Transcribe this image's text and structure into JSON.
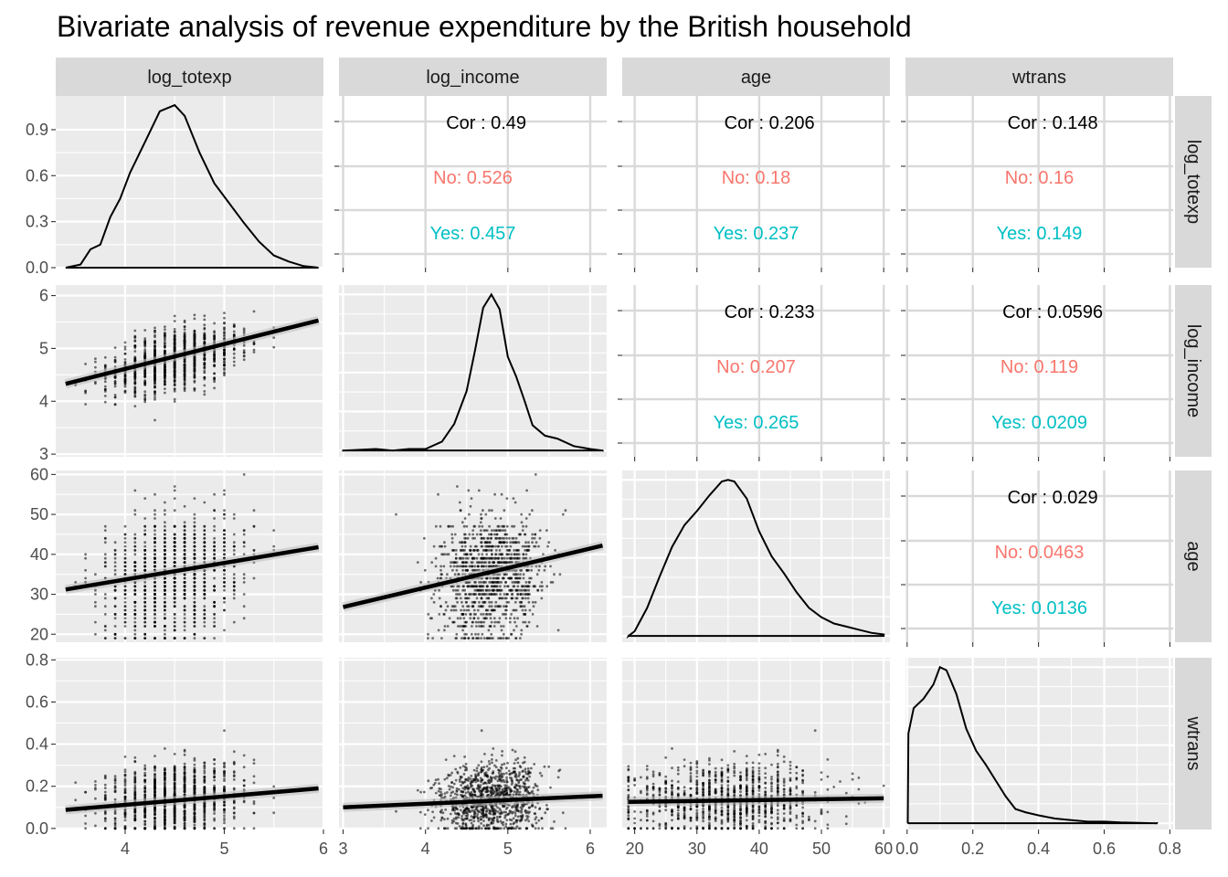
{
  "chart_data": {
    "type": "scatter",
    "layout": "pairs-matrix",
    "title": "Bivariate analysis of revenue expenditure by the British household",
    "variables": [
      "log_totexp",
      "log_income",
      "age",
      "wtrans"
    ],
    "axes": {
      "log_totexp": {
        "range": [
          3.3,
          6.0
        ],
        "ticks": [
          4,
          5,
          6
        ],
        "density_ticks": [
          0.0,
          0.3,
          0.6,
          0.9
        ],
        "density_range": [
          0,
          1.12
        ]
      },
      "log_income": {
        "range": [
          2.95,
          6.2
        ],
        "ticks": [
          3,
          4,
          5,
          6
        ]
      },
      "age": {
        "range": [
          18,
          61
        ],
        "ticks": [
          20,
          30,
          40,
          50,
          60
        ]
      },
      "wtrans": {
        "range": [
          -0.005,
          0.81
        ],
        "ticks": [
          0.0,
          0.2,
          0.4,
          0.6,
          0.8
        ],
        "tick_labels": [
          "0.0",
          "0.2",
          "0.4",
          "0.6",
          "0.8"
        ]
      }
    },
    "tick_labels": {
      "log_totexp": [
        "4",
        "5",
        "6"
      ],
      "log_income": [
        "3",
        "4",
        "5",
        "6"
      ],
      "age": [
        "20",
        "30",
        "40",
        "50",
        "60"
      ],
      "wtrans": [
        "0.0",
        "0.2",
        "0.4",
        "0.6",
        "0.8"
      ],
      "density": [
        "0.0",
        "0.3",
        "0.6",
        "0.9"
      ]
    },
    "correlations": [
      {
        "row": "log_totexp",
        "col": "log_income",
        "total": "Cor : 0.49",
        "groups": [
          {
            "name": "No",
            "label": "No: 0.526",
            "color": "#F8766D"
          },
          {
            "name": "Yes",
            "label": "Yes: 0.457",
            "color": "#00BFC4"
          }
        ]
      },
      {
        "row": "log_totexp",
        "col": "age",
        "total": "Cor : 0.206",
        "groups": [
          {
            "name": "No",
            "label": "No: 0.18",
            "color": "#F8766D"
          },
          {
            "name": "Yes",
            "label": "Yes: 0.237",
            "color": "#00BFC4"
          }
        ]
      },
      {
        "row": "log_totexp",
        "col": "wtrans",
        "total": "Cor : 0.148",
        "groups": [
          {
            "name": "No",
            "label": "No: 0.16",
            "color": "#F8766D"
          },
          {
            "name": "Yes",
            "label": "Yes: 0.149",
            "color": "#00BFC4"
          }
        ]
      },
      {
        "row": "log_income",
        "col": "age",
        "total": "Cor : 0.233",
        "groups": [
          {
            "name": "No",
            "label": "No: 0.207",
            "color": "#F8766D"
          },
          {
            "name": "Yes",
            "label": "Yes: 0.265",
            "color": "#00BFC4"
          }
        ]
      },
      {
        "row": "log_income",
        "col": "wtrans",
        "total": "Cor : 0.0596",
        "groups": [
          {
            "name": "No",
            "label": "No: 0.119",
            "color": "#F8766D"
          },
          {
            "name": "Yes",
            "label": "Yes: 0.0209",
            "color": "#00BFC4"
          }
        ]
      },
      {
        "row": "age",
        "col": "wtrans",
        "total": "Cor : 0.029",
        "groups": [
          {
            "name": "No",
            "label": "No: 0.0463",
            "color": "#F8766D"
          },
          {
            "name": "Yes",
            "label": "Yes: 0.0136",
            "color": "#00BFC4"
          }
        ]
      }
    ],
    "densities": {
      "log_totexp": [
        [
          3.4,
          0.0
        ],
        [
          3.55,
          0.02
        ],
        [
          3.65,
          0.12
        ],
        [
          3.75,
          0.15
        ],
        [
          3.85,
          0.33
        ],
        [
          3.95,
          0.45
        ],
        [
          4.05,
          0.62
        ],
        [
          4.2,
          0.82
        ],
        [
          4.35,
          1.02
        ],
        [
          4.5,
          1.06
        ],
        [
          4.6,
          0.99
        ],
        [
          4.75,
          0.75
        ],
        [
          4.9,
          0.55
        ],
        [
          5.05,
          0.42
        ],
        [
          5.2,
          0.29
        ],
        [
          5.35,
          0.17
        ],
        [
          5.5,
          0.08
        ],
        [
          5.65,
          0.04
        ],
        [
          5.8,
          0.01
        ],
        [
          5.95,
          0.0
        ]
      ],
      "log_income": [
        [
          3.0,
          0.0
        ],
        [
          3.4,
          0.01
        ],
        [
          3.6,
          0.0
        ],
        [
          3.8,
          0.01
        ],
        [
          4.0,
          0.01
        ],
        [
          4.2,
          0.06
        ],
        [
          4.35,
          0.18
        ],
        [
          4.5,
          0.4
        ],
        [
          4.6,
          0.67
        ],
        [
          4.7,
          0.96
        ],
        [
          4.8,
          1.05
        ],
        [
          4.9,
          0.95
        ],
        [
          5.0,
          0.63
        ],
        [
          5.1,
          0.5
        ],
        [
          5.2,
          0.34
        ],
        [
          5.3,
          0.17
        ],
        [
          5.45,
          0.1
        ],
        [
          5.6,
          0.08
        ],
        [
          5.8,
          0.03
        ],
        [
          6.0,
          0.01
        ],
        [
          6.15,
          0.0
        ]
      ],
      "age": [
        [
          19,
          0.0
        ],
        [
          20,
          0.03
        ],
        [
          22,
          0.18
        ],
        [
          24,
          0.38
        ],
        [
          26,
          0.57
        ],
        [
          28,
          0.71
        ],
        [
          30,
          0.8
        ],
        [
          32,
          0.9
        ],
        [
          34,
          0.99
        ],
        [
          35,
          1.0
        ],
        [
          36,
          0.99
        ],
        [
          38,
          0.88
        ],
        [
          40,
          0.67
        ],
        [
          42,
          0.51
        ],
        [
          44,
          0.4
        ],
        [
          46,
          0.28
        ],
        [
          48,
          0.18
        ],
        [
          50,
          0.12
        ],
        [
          52,
          0.08
        ],
        [
          54,
          0.06
        ],
        [
          56,
          0.04
        ],
        [
          58,
          0.02
        ],
        [
          60,
          0.01
        ]
      ],
      "wtrans": [
        [
          0.002,
          0.0
        ],
        [
          0.004,
          0.57
        ],
        [
          0.02,
          0.73
        ],
        [
          0.05,
          0.79
        ],
        [
          0.08,
          0.88
        ],
        [
          0.1,
          0.99
        ],
        [
          0.12,
          0.97
        ],
        [
          0.15,
          0.82
        ],
        [
          0.18,
          0.6
        ],
        [
          0.21,
          0.46
        ],
        [
          0.24,
          0.37
        ],
        [
          0.27,
          0.27
        ],
        [
          0.3,
          0.17
        ],
        [
          0.33,
          0.09
        ],
        [
          0.36,
          0.07
        ],
        [
          0.4,
          0.05
        ],
        [
          0.45,
          0.03
        ],
        [
          0.5,
          0.02
        ],
        [
          0.55,
          0.01
        ],
        [
          0.6,
          0.01
        ],
        [
          0.65,
          0.005
        ],
        [
          0.76,
          0.0
        ]
      ]
    },
    "regression_lines": [
      {
        "row": "log_income",
        "col": "log_totexp",
        "x": [
          3.4,
          5.95
        ],
        "y": [
          4.33,
          5.53
        ]
      },
      {
        "row": "age",
        "col": "log_totexp",
        "x": [
          3.4,
          5.95
        ],
        "y": [
          31.2,
          41.8
        ]
      },
      {
        "row": "age",
        "col": "log_income",
        "x": [
          3.0,
          6.15
        ],
        "y": [
          26.8,
          42.2
        ]
      },
      {
        "row": "wtrans",
        "col": "log_totexp",
        "x": [
          3.4,
          5.95
        ],
        "y": [
          0.088,
          0.19
        ]
      },
      {
        "row": "wtrans",
        "col": "log_income",
        "x": [
          3.0,
          6.15
        ],
        "y": [
          0.1,
          0.155
        ]
      },
      {
        "row": "wtrans",
        "col": "age",
        "x": [
          19,
          60
        ],
        "y": [
          0.126,
          0.143
        ]
      }
    ],
    "point_color": "#000000",
    "grid": true,
    "panel_background": "#EBEBEB",
    "strip_background": "#D9D9D9"
  }
}
